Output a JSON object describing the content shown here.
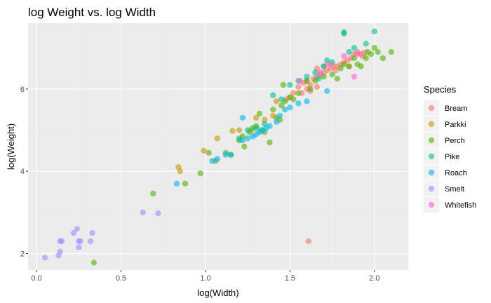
{
  "chart_data": {
    "type": "scatter",
    "title": "log Weight vs. log Width",
    "xlabel": "log(Width)",
    "ylabel": "log(Weight)",
    "xlim": [
      -0.05,
      2.2
    ],
    "ylim": [
      1.6,
      7.6
    ],
    "x_ticks": [
      0.0,
      0.5,
      1.0,
      1.5,
      2.0
    ],
    "x_tick_labels": [
      "0.0",
      "0.5",
      "1.0",
      "1.5",
      "2.0"
    ],
    "y_ticks": [
      2,
      4,
      6
    ],
    "y_tick_labels": [
      "2",
      "4",
      "6"
    ],
    "grid": true,
    "legend": {
      "title": "Species",
      "position": "right"
    },
    "series": [
      {
        "name": "Bream",
        "color": "#F8766D",
        "points": [
          [
            1.6,
            6.0
          ],
          [
            1.62,
            6.1
          ],
          [
            1.64,
            6.25
          ],
          [
            1.66,
            6.3
          ],
          [
            1.68,
            6.35
          ],
          [
            1.7,
            6.4
          ],
          [
            1.72,
            6.45
          ],
          [
            1.74,
            6.5
          ],
          [
            1.76,
            6.55
          ],
          [
            1.78,
            6.55
          ],
          [
            1.8,
            6.6
          ],
          [
            1.82,
            6.65
          ],
          [
            1.84,
            6.7
          ],
          [
            1.86,
            6.75
          ],
          [
            1.88,
            6.85
          ],
          [
            1.9,
            6.9
          ],
          [
            1.92,
            6.85
          ],
          [
            1.94,
            6.88
          ],
          [
            1.85,
            6.55
          ],
          [
            1.7,
            6.55
          ],
          [
            1.66,
            6.5
          ],
          [
            1.6,
            6.2
          ],
          [
            1.55,
            6.05
          ],
          [
            1.52,
            5.9
          ],
          [
            1.5,
            5.8
          ],
          [
            1.48,
            5.75
          ],
          [
            1.58,
            6.15
          ],
          [
            1.57,
            5.9
          ],
          [
            1.62,
            5.95
          ],
          [
            1.66,
            6.05
          ],
          [
            1.72,
            6.6
          ],
          [
            1.77,
            6.45
          ],
          [
            1.93,
            6.8
          ],
          [
            1.61,
            2.3
          ]
        ]
      },
      {
        "name": "Parkki",
        "color": "#C49A00",
        "points": [
          [
            0.84,
            4.1
          ],
          [
            0.85,
            4.0
          ],
          [
            0.99,
            4.5
          ],
          [
            1.07,
            4.8
          ],
          [
            1.16,
            4.98
          ],
          [
            1.2,
            5.0
          ],
          [
            1.27,
            5.0
          ],
          [
            1.3,
            5.3
          ],
          [
            1.35,
            5.25
          ],
          [
            1.4,
            5.35
          ],
          [
            1.42,
            5.7
          ]
        ]
      },
      {
        "name": "Perch",
        "color": "#53B400",
        "points": [
          [
            0.34,
            1.78
          ],
          [
            0.69,
            3.46
          ],
          [
            0.88,
            3.7
          ],
          [
            0.97,
            3.95
          ],
          [
            1.02,
            4.45
          ],
          [
            1.06,
            4.25
          ],
          [
            1.12,
            4.45
          ],
          [
            1.15,
            4.4
          ],
          [
            1.2,
            4.75
          ],
          [
            1.22,
            4.85
          ],
          [
            1.23,
            4.6
          ],
          [
            1.26,
            4.95
          ],
          [
            1.28,
            5.05
          ],
          [
            1.3,
            5.1
          ],
          [
            1.32,
            5.4
          ],
          [
            1.33,
            5.0
          ],
          [
            1.35,
            4.95
          ],
          [
            1.38,
            4.7
          ],
          [
            1.4,
            5.5
          ],
          [
            1.42,
            5.3
          ],
          [
            1.44,
            5.25
          ],
          [
            1.45,
            5.6
          ],
          [
            1.47,
            5.7
          ],
          [
            1.5,
            5.8
          ],
          [
            1.52,
            5.75
          ],
          [
            1.55,
            5.9
          ],
          [
            1.6,
            6.2
          ],
          [
            1.62,
            6.0
          ],
          [
            1.65,
            6.2
          ],
          [
            1.7,
            6.3
          ],
          [
            1.75,
            6.35
          ],
          [
            1.78,
            6.25
          ],
          [
            1.8,
            6.5
          ],
          [
            1.82,
            6.6
          ],
          [
            1.85,
            6.55
          ],
          [
            1.88,
            6.75
          ],
          [
            1.9,
            6.6
          ],
          [
            1.92,
            6.55
          ],
          [
            1.95,
            6.75
          ],
          [
            1.96,
            6.9
          ],
          [
            1.98,
            6.85
          ],
          [
            2.0,
            7.0
          ],
          [
            2.02,
            6.9
          ],
          [
            2.05,
            6.75
          ],
          [
            2.1,
            6.9
          ],
          [
            1.46,
            6.1
          ]
        ]
      },
      {
        "name": "Pike",
        "color": "#00C094",
        "points": [
          [
            1.2,
            4.8
          ],
          [
            1.25,
            5.0
          ],
          [
            1.3,
            5.05
          ],
          [
            1.35,
            5.15
          ],
          [
            1.4,
            5.85
          ],
          [
            1.45,
            5.75
          ],
          [
            1.5,
            6.1
          ],
          [
            1.55,
            6.2
          ],
          [
            1.6,
            6.3
          ],
          [
            1.65,
            6.4
          ],
          [
            1.7,
            6.55
          ],
          [
            1.75,
            6.65
          ],
          [
            1.82,
            7.35
          ],
          [
            1.82,
            7.38
          ],
          [
            1.85,
            6.9
          ],
          [
            1.88,
            7.0
          ],
          [
            1.95,
            7.1
          ],
          [
            2.0,
            7.4
          ],
          [
            1.72,
            6.7
          ],
          [
            1.67,
            6.25
          ]
        ]
      },
      {
        "name": "Roach",
        "color": "#00B6EB",
        "points": [
          [
            0.83,
            3.7
          ],
          [
            1.04,
            4.25
          ],
          [
            1.07,
            4.3
          ],
          [
            1.12,
            4.4
          ],
          [
            1.15,
            4.4
          ],
          [
            1.22,
            4.75
          ],
          [
            1.25,
            4.8
          ],
          [
            1.28,
            4.85
          ],
          [
            1.3,
            4.9
          ],
          [
            1.32,
            4.95
          ],
          [
            1.34,
            5.0
          ],
          [
            1.36,
            5.05
          ],
          [
            1.38,
            5.1
          ],
          [
            1.42,
            5.2
          ],
          [
            1.44,
            5.35
          ],
          [
            1.47,
            5.5
          ],
          [
            1.5,
            5.55
          ],
          [
            1.55,
            5.65
          ],
          [
            1.6,
            5.7
          ],
          [
            1.72,
            5.95
          ],
          [
            1.22,
            5.3
          ]
        ]
      },
      {
        "name": "Smelt",
        "color": "#A58AFF",
        "points": [
          [
            0.05,
            1.9
          ],
          [
            0.13,
            1.95
          ],
          [
            0.14,
            2.05
          ],
          [
            0.14,
            2.3
          ],
          [
            0.15,
            2.3
          ],
          [
            0.22,
            2.5
          ],
          [
            0.24,
            2.6
          ],
          [
            0.25,
            2.3
          ],
          [
            0.25,
            2.15
          ],
          [
            0.26,
            2.3
          ],
          [
            0.32,
            2.3
          ],
          [
            0.33,
            2.5
          ],
          [
            0.63,
            3.0
          ],
          [
            0.72,
            2.98
          ]
        ]
      },
      {
        "name": "Whitefish",
        "color": "#FB61D7",
        "points": [
          [
            1.56,
            6.2
          ],
          [
            1.68,
            6.4
          ],
          [
            1.74,
            6.6
          ],
          [
            1.82,
            6.8
          ],
          [
            1.88,
            6.3
          ],
          [
            1.9,
            6.85
          ]
        ]
      }
    ]
  }
}
